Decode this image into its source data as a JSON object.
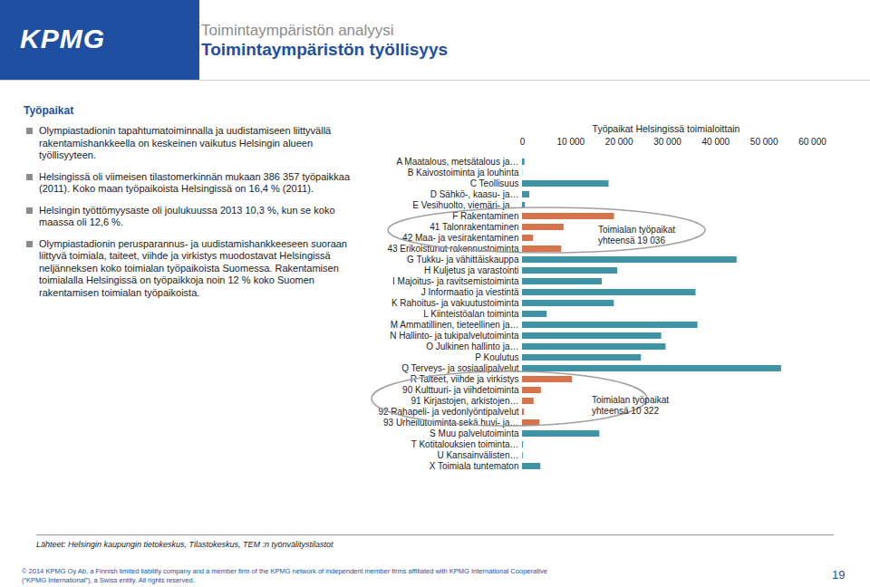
{
  "header": {
    "logo": "KPMG",
    "subtitle": "Toimintaympäristön analyysi",
    "title": "Toimintaympäristön työllisyys"
  },
  "text": {
    "heading": "Työpaikat",
    "bullets": [
      "Olympiastadionin tapahtumatoiminnalla ja uudistamiseen liittyvällä rakentamishankkeella on keskeinen vaikutus Helsingin alueen työllisyyteen.",
      "Helsingissä oli viimeisen tilastomerkinnän mukaan 386 357 työpaikkaa (2011). Koko maan työpaikoista Helsingissä on 16,4 % (2011).",
      "Helsingin työttömyysaste oli joulukuussa 2013 10,3 %, kun se koko maassa oli 12,6 %.",
      "Olympiastadionin perusparannus- ja uudistamishankkeeseen suoraan liittyvä toimiala, taiteet, viihde ja virkistys muodostavat Helsingissä neljänneksen koko toimialan työpaikoista Suomessa. Rakentamisen toimialalla Helsingissä on työpaikkoja noin 12 % koko Suomen rakentamisen toimialan työpaikoista."
    ]
  },
  "chart_data": {
    "type": "bar",
    "orientation": "horizontal",
    "title": "Työpaikat Helsingissä toimialoittain",
    "categories": [
      "A Maatalous, metsätalous ja…",
      "B Kaivostoiminta ja louhinta",
      "C Teollisuus",
      "D Sähkö-, kaasu- ja…",
      "E Vesihuolto, viemäri- ja…",
      "F Rakentaminen",
      "41 Talonrakentaminen",
      "42 Maa- ja vesirakentaminen",
      "43 Erikoistunut rakennustoiminta",
      "G Tukku- ja vähittäiskauppa",
      "H Kuljetus ja varastointi",
      "I Majoitus- ja ravitsemistoiminta",
      "J Informaatio ja viestintä",
      "K Rahoitus- ja vakuutustoiminta",
      "L Kiinteistöalan toiminta",
      "M Ammatillinen, tieteellinen ja…",
      "N Hallinto- ja tukipalvelutoiminta",
      "O Julkinen hallinto ja…",
      "P Koulutus",
      "Q Terveys- ja sosiaalipalvelut",
      "R Taiteet, viihde ja virkistys",
      "90 Kulttuuri- ja viihdetoiminta",
      "91 Kirjastojen, arkistojen…",
      "92 Rahapeli- ja vedonlyöntipalvelut",
      "93 Urheilutoiminta sekä huvi- ja…",
      "S Muu palvelutoiminta",
      "T Kotitalouksien toiminta…",
      "U Kansainvälisten…",
      "X Toimiala tuntematon"
    ],
    "values": [
      500,
      50,
      17900,
      1500,
      600,
      19036,
      8600,
      2300,
      8100,
      44400,
      19700,
      16500,
      35900,
      19000,
      5100,
      36300,
      28800,
      29700,
      24600,
      53600,
      10322,
      3900,
      2400,
      400,
      3600,
      16000,
      200,
      150,
      3800
    ],
    "colors": [
      "#3f93a5",
      "#3f93a5",
      "#3f93a5",
      "#3f93a5",
      "#3f93a5",
      "#d5744b",
      "#d5744b",
      "#d5744b",
      "#d5744b",
      "#3f93a5",
      "#3f93a5",
      "#3f93a5",
      "#3f93a5",
      "#3f93a5",
      "#3f93a5",
      "#3f93a5",
      "#3f93a5",
      "#3f93a5",
      "#3f93a5",
      "#3f93a5",
      "#d5744b",
      "#d5744b",
      "#d5744b",
      "#d5744b",
      "#d5744b",
      "#3f93a5",
      "#3f93a5",
      "#3f93a5",
      "#3f93a5"
    ],
    "xlim": [
      0,
      60000
    ],
    "xticks": [
      0,
      {
        "value": 10000,
        "label": "10 000"
      },
      {
        "value": 20000,
        "label": "20 000"
      },
      {
        "value": 30000,
        "label": "30 000"
      },
      {
        "value": 40000,
        "label": "40 000"
      },
      {
        "value": 50000,
        "label": "50 000"
      },
      {
        "value": 60000,
        "label": "60 000"
      }
    ],
    "grid": false,
    "annotations": [
      [
        "Toimialan työpaikat",
        "yhteensä 19 036"
      ],
      [
        "Toimialan työpaikat",
        "yhteensä 10 322"
      ]
    ]
  },
  "sources": "Lähteet: Helsingin kaupungin tietokeskus, Tilastokeskus, TEM :n työnvälitystilastot",
  "footer": {
    "copyright": [
      "© 2014 KPMG Oy Ab, a Finnish limited liability company and a member firm of the KPMG network of independent member firms affiliated with KPMG International Cooperative",
      "(“KPMG International”), a Swiss entity. All rights reserved."
    ],
    "page": 19
  }
}
